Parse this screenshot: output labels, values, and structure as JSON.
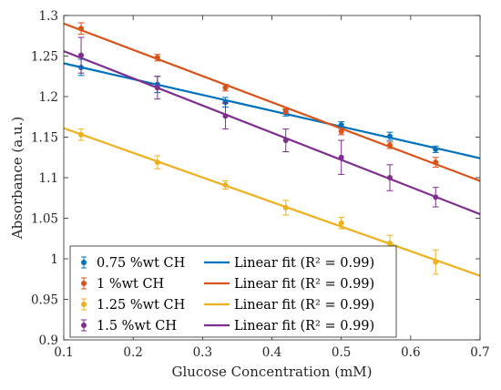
{
  "chart_data": {
    "type": "scatter",
    "xlabel": "Glucose Concentration (mM)",
    "ylabel": "Absorbance (a.u.)",
    "xlim": [
      0.1,
      0.7
    ],
    "ylim": [
      0.9,
      1.3
    ],
    "xticks": [
      "0.1",
      "0.2",
      "0.3",
      "0.4",
      "0.5",
      "0.6",
      "0.7"
    ],
    "yticks": [
      "0.9",
      "0.95",
      "1",
      "1.05",
      "1.1",
      "1.15",
      "1.2",
      "1.25",
      "1.3"
    ],
    "grid": false,
    "legend_position": "bottom-left",
    "x": [
      0.125,
      0.235,
      0.333,
      0.42,
      0.5,
      0.57,
      0.636
    ],
    "series": [
      {
        "name": "0.75 %wt CH",
        "fit_name": "Linear fit (R² = 0.99)",
        "color": "#0072BD",
        "y": [
          1.236,
          1.215,
          1.193,
          1.18,
          1.165,
          1.151,
          1.135
        ],
        "err": [
          0.01,
          0.01,
          0.006,
          0.004,
          0.004,
          0.005,
          0.004
        ],
        "fit": [
          [
            0.1,
            1.241
          ],
          [
            0.7,
            1.124
          ]
        ]
      },
      {
        "name": "1 %wt CH",
        "fit_name": "Linear fit (R² = 0.99)",
        "color": "#D95319",
        "y": [
          1.284,
          1.248,
          1.211,
          1.182,
          1.157,
          1.14,
          1.119
        ],
        "err": [
          0.007,
          0.004,
          0.004,
          0.003,
          0.004,
          0.004,
          0.006
        ],
        "fit": [
          [
            0.1,
            1.29
          ],
          [
            0.7,
            1.096
          ]
        ]
      },
      {
        "name": "1.25 %wt CH",
        "fit_name": "Linear fit (R² = 0.99)",
        "color": "#EDB120",
        "y": [
          1.153,
          1.119,
          1.091,
          1.063,
          1.044,
          1.019,
          0.996
        ],
        "err": [
          0.007,
          0.008,
          0.005,
          0.009,
          0.007,
          0.01,
          0.015
        ],
        "fit": [
          [
            0.1,
            1.161
          ],
          [
            0.7,
            0.979
          ]
        ]
      },
      {
        "name": "1.5 %wt CH",
        "fit_name": "Linear fit (R² = 0.99)",
        "color": "#7E2F8E",
        "y": [
          1.251,
          1.211,
          1.176,
          1.146,
          1.125,
          1.1,
          1.076
        ],
        "err": [
          0.022,
          0.014,
          0.016,
          0.014,
          0.021,
          0.016,
          0.012
        ],
        "fit": [
          [
            0.1,
            1.256
          ],
          [
            0.7,
            1.055
          ]
        ]
      }
    ]
  }
}
